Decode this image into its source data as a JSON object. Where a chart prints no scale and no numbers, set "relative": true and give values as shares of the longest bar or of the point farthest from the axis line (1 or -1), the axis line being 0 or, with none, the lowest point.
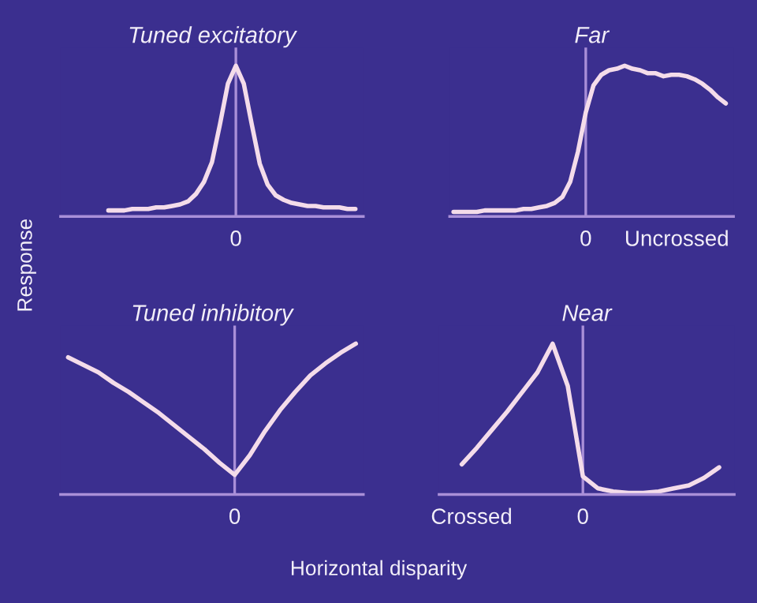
{
  "chart_data": [
    {
      "type": "line",
      "title": "Tuned excitatory",
      "relative": true,
      "color": "#f4dcea",
      "categories": [
        null,
        null,
        null,
        null,
        null,
        null,
        null,
        null,
        null,
        null,
        null,
        null,
        null,
        null,
        null,
        null,
        null,
        null,
        null,
        null,
        null,
        null,
        null,
        null,
        null,
        null,
        null,
        null,
        null,
        null,
        null,
        null
      ],
      "values": [
        0.04,
        0.04,
        0.04,
        0.05,
        0.05,
        0.05,
        0.06,
        0.06,
        0.07,
        0.08,
        0.1,
        0.15,
        0.23,
        0.36,
        0.61,
        0.88,
        1,
        0.88,
        0.61,
        0.35,
        0.21,
        0.14,
        0.11,
        0.09,
        0.08,
        0.07,
        0.07,
        0.06,
        0.06,
        0.06,
        0.05,
        0.05
      ],
      "annotations": [
        "0"
      ]
    },
    {
      "type": "line",
      "title": "Far",
      "relative": true,
      "color": "#f4dcea",
      "categories": [
        null,
        null,
        null,
        null,
        null,
        null,
        null,
        null,
        null,
        null,
        null,
        null,
        null,
        null,
        null,
        null,
        null,
        null,
        null,
        null,
        null,
        null,
        null,
        null,
        null,
        null,
        null,
        null,
        null,
        null,
        null,
        null,
        null,
        null,
        null,
        null
      ],
      "values": [
        0.03,
        0.03,
        0.03,
        0.03,
        0.04,
        0.04,
        0.04,
        0.04,
        0.04,
        0.05,
        0.05,
        0.06,
        0.07,
        0.09,
        0.13,
        0.23,
        0.43,
        0.69,
        0.87,
        0.94,
        0.97,
        0.98,
        1,
        0.98,
        0.97,
        0.95,
        0.95,
        0.93,
        0.94,
        0.94,
        0.93,
        0.91,
        0.88,
        0.84,
        0.79,
        0.75
      ],
      "annotations": [
        "0",
        "Uncrossed"
      ]
    },
    {
      "type": "line",
      "title": "Tuned inhibitory",
      "ylabel": "Response",
      "relative": true,
      "color": "#f4dcea",
      "categories": [
        null,
        null,
        null,
        null,
        null,
        null,
        null,
        null,
        null,
        null,
        null,
        null,
        null,
        null,
        null,
        null,
        null,
        null,
        null,
        null
      ],
      "values": [
        0.91,
        0.86,
        0.81,
        0.74,
        0.68,
        0.61,
        0.54,
        0.46,
        0.38,
        0.3,
        0.21,
        0.13,
        0.26,
        0.42,
        0.56,
        0.68,
        0.79,
        0.87,
        0.94,
        1
      ],
      "annotations": [
        "0"
      ]
    },
    {
      "type": "line",
      "title": "Near",
      "xlabel": "Horizontal disparity",
      "relative": true,
      "color": "#f4dcea",
      "categories": [
        null,
        null,
        null,
        null,
        null,
        null,
        null,
        null,
        null,
        null,
        null,
        null,
        null,
        null,
        null,
        null,
        null,
        null
      ],
      "values": [
        0.2,
        0.31,
        0.43,
        0.55,
        0.68,
        0.81,
        1,
        0.72,
        0.12,
        0.04,
        0.02,
        0.01,
        0.01,
        0.02,
        0.04,
        0.06,
        0.11,
        0.18
      ],
      "annotations": [
        "Crossed",
        "0"
      ]
    }
  ]
}
